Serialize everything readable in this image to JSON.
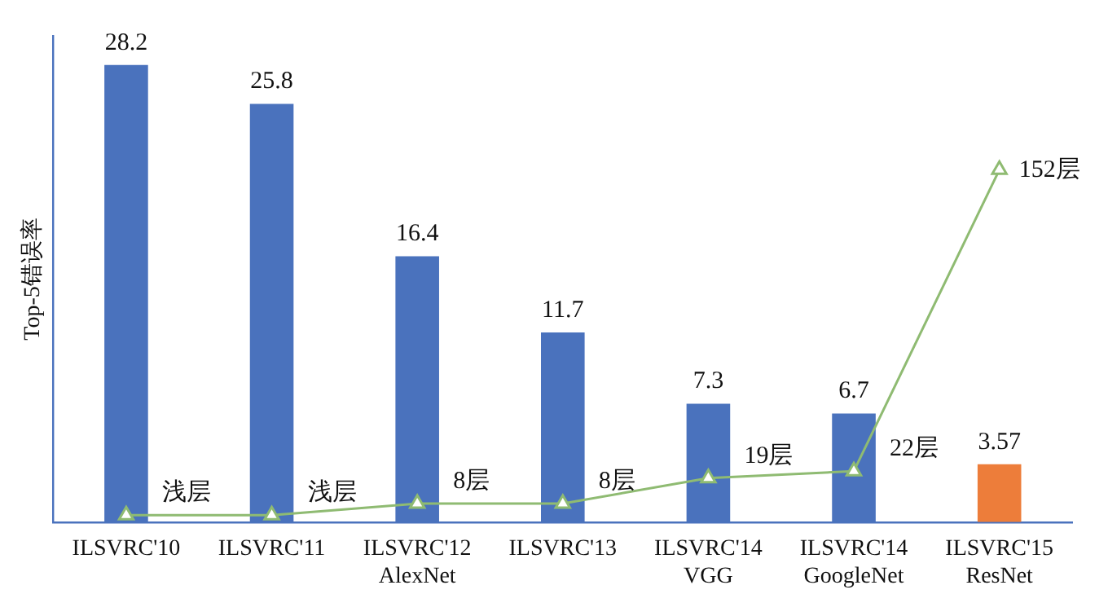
{
  "chart_data": {
    "type": "bar",
    "ylabel": "Top-5错误率",
    "categories": [
      "ILSVRC'10",
      "ILSVRC'11",
      "ILSVRC'12\nAlexNet",
      "ILSVRC'13",
      "ILSVRC'14\nVGG",
      "ILSVRC'14\nGoogleNet",
      "ILSVRC'15\nResNet"
    ],
    "series": [
      {
        "colors": [
          "#4a72bd",
          "#4a72bd",
          "#4a72bd",
          "#4a72bd",
          "#4a72bd",
          "#4a72bd",
          "#ed7d3a"
        ],
        "values": [
          28.2,
          25.8,
          16.4,
          11.7,
          7.3,
          6.7,
          3.57
        ],
        "value_labels": [
          "28.2",
          "25.8",
          "16.4",
          "11.7",
          "7.3",
          "6.7",
          "3.57"
        ]
      },
      {
        "type": "line",
        "axis": "y2",
        "color": "#8fbb72",
        "values": [
          3,
          3,
          8,
          8,
          19,
          22,
          152
        ],
        "value_labels": [
          "浅层",
          "浅层",
          "8层",
          "8层",
          "19层",
          "22层",
          "152层"
        ]
      }
    ],
    "ylim": [
      0,
      30
    ],
    "tick_labels": "x",
    "grid": false,
    "legend": false,
    "marker": "triangle"
  }
}
